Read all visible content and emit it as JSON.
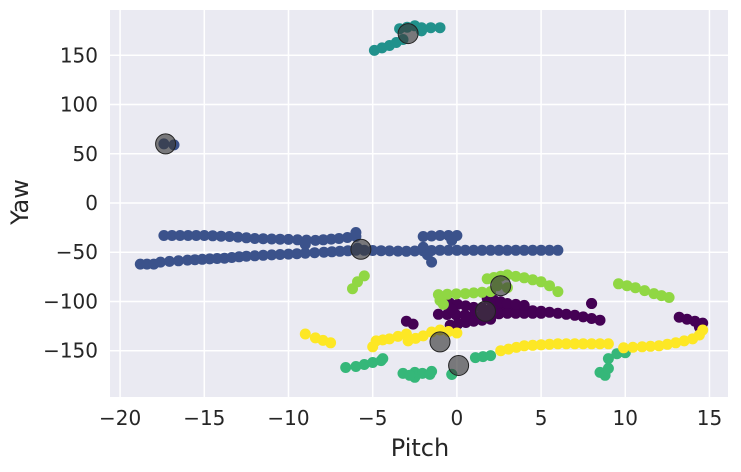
{
  "chart_data": {
    "type": "scatter",
    "title": "",
    "xlabel": "Pitch",
    "ylabel": "Yaw",
    "xlim": [
      -20.6,
      16.1
    ],
    "ylim": [
      -197,
      196
    ],
    "xticks": [
      -20,
      -15,
      -10,
      -5,
      0,
      5,
      10,
      15
    ],
    "yticks": [
      -150,
      -100,
      -50,
      0,
      50,
      100,
      150
    ],
    "xtick_labels": [
      "−20",
      "−15",
      "−10",
      "−5",
      "0",
      "5",
      "10",
      "15"
    ],
    "ytick_labels": [
      "−150",
      "−100",
      "−50",
      "0",
      "50",
      "100",
      "150"
    ],
    "grid": true,
    "legend": "none",
    "colors": {
      "background": "#eaeaf2",
      "grid": "#ffffff",
      "center": "#3a3a3a"
    },
    "series": [
      {
        "color": "#440154",
        "segments": [
          [
            [
              -0.9,
              -100
            ],
            [
              1.0,
              -106
            ],
            [
              3.0,
              -108
            ],
            [
              5.0,
              -110
            ],
            [
              7.0,
              -114
            ],
            [
              8.5,
              -119
            ]
          ],
          [
            [
              -1.1,
              -113
            ],
            [
              1.0,
              -114
            ],
            [
              3.0,
              -112
            ],
            [
              5.0,
              -112
            ]
          ],
          [
            [
              -0.4,
              -124
            ],
            [
              1.0,
              -120
            ],
            [
              2.0,
              -118
            ]
          ],
          [
            [
              1.8,
              -97
            ],
            [
              3.0,
              -102
            ],
            [
              4.0,
              -104
            ]
          ],
          [
            [
              8.0,
              -102
            ],
            [
              8.0,
              -102
            ]
          ],
          [
            [
              13.2,
              -116
            ],
            [
              14.6,
              -122
            ]
          ]
        ],
        "points": [
          [
            -3.0,
            -120
          ],
          [
            -2.6,
            -123
          ],
          [
            14.4,
            -126
          ],
          [
            -0.3,
            -108
          ],
          [
            0.5,
            -115
          ]
        ]
      },
      {
        "color": "#3b528b",
        "segments": [
          [
            [
              -18.8,
              -62
            ],
            [
              -18.0,
              -62
            ]
          ],
          [
            [
              -17.6,
              -60
            ],
            [
              -16.0,
              -58
            ],
            [
              -13.8,
              -56
            ],
            [
              -12.5,
              -54
            ],
            [
              -9.0,
              -51
            ],
            [
              -7.9,
              -50
            ],
            [
              -6.0,
              -48
            ]
          ],
          [
            [
              -17.4,
              -33
            ],
            [
              -15.0,
              -33
            ],
            [
              -13.5,
              -34
            ],
            [
              -12.0,
              -36
            ],
            [
              -10.0,
              -37
            ],
            [
              -8.4,
              -38
            ],
            [
              -7.0,
              -36
            ],
            [
              -6.0,
              -34
            ],
            [
              -6.0,
              -30
            ]
          ],
          [
            [
              -17.4,
              60
            ],
            [
              -16.8,
              59
            ]
          ],
          [
            [
              -5.5,
              -48
            ],
            [
              -3.0,
              -49
            ],
            [
              -1.0,
              -48
            ],
            [
              1.0,
              -48
            ],
            [
              3.0,
              -48
            ],
            [
              6.0,
              -48
            ]
          ],
          [
            [
              -2.0,
              -34
            ],
            [
              -1.0,
              -33
            ],
            [
              0.0,
              -33
            ]
          ],
          [
            [
              -2.0,
              -45
            ],
            [
              -1.5,
              -60
            ]
          ]
        ],
        "points": [
          [
            -9.0,
            -42
          ],
          [
            -5.9,
            -46
          ],
          [
            -0.3,
            -38
          ]
        ]
      },
      {
        "color": "#21918c",
        "segments": [
          [
            [
              -4.9,
              155
            ],
            [
              -4.0,
              160
            ],
            [
              -3.2,
              166
            ]
          ],
          [
            [
              -3.4,
              177
            ],
            [
              -2.5,
              180
            ]
          ],
          [
            [
              -2.1,
              178
            ],
            [
              -1.0,
              178
            ]
          ],
          [
            [
              -2.1,
              175
            ],
            [
              -2.1,
              175
            ]
          ]
        ],
        "points": []
      },
      {
        "color": "#35b779",
        "segments": [
          [
            [
              -6.6,
              -167
            ],
            [
              -6.0,
              -166
            ],
            [
              -5.0,
              -162
            ],
            [
              -4.5,
              -160
            ],
            [
              -4.4,
              -158
            ]
          ],
          [
            [
              -3.2,
              -173
            ],
            [
              -2.5,
              -172
            ],
            [
              -1.6,
              -174
            ],
            [
              -1.5,
              -171
            ]
          ],
          [
            [
              -0.3,
              -174
            ],
            [
              -0.3,
              -174
            ]
          ],
          [
            [
              1.1,
              -157
            ],
            [
              2.0,
              -155
            ]
          ],
          [
            [
              8.5,
              -172
            ],
            [
              8.8,
              -175
            ]
          ],
          [
            [
              9.0,
              -168
            ],
            [
              9.0,
              -158
            ],
            [
              9.5,
              -153
            ],
            [
              10.0,
              -152
            ]
          ]
        ],
        "points": [
          [
            -2.5,
            -177
          ],
          [
            -2.8,
            -175
          ]
        ]
      },
      {
        "color": "#90d743",
        "segments": [
          [
            [
              -6.2,
              -87
            ],
            [
              -5.9,
              -80
            ],
            [
              -5.5,
              -74
            ]
          ],
          [
            [
              -1.1,
              -93
            ],
            [
              0.5,
              -92
            ],
            [
              2.0,
              -90
            ]
          ],
          [
            [
              1.8,
              -77
            ],
            [
              3.0,
              -73
            ],
            [
              4.0,
              -76
            ],
            [
              5.0,
              -80
            ],
            [
              5.5,
              -84
            ],
            [
              6.0,
              -90
            ]
          ],
          [
            [
              9.6,
              -82
            ],
            [
              10.6,
              -86
            ],
            [
              11.7,
              -92
            ],
            [
              12.6,
              -96
            ]
          ],
          [
            [
              2.4,
              -84
            ],
            [
              3.0,
              -86
            ]
          ]
        ],
        "points": [
          [
            -1.0,
            -99
          ],
          [
            -0.8,
            -103
          ]
        ]
      },
      {
        "color": "#fde725",
        "segments": [
          [
            [
              -9.0,
              -133
            ],
            [
              -8.4,
              -137
            ],
            [
              -7.5,
              -142
            ]
          ],
          [
            [
              -5.0,
              -146
            ],
            [
              -4.8,
              -140
            ],
            [
              -4.0,
              -138
            ],
            [
              -3.0,
              -133
            ]
          ],
          [
            [
              -2.9,
              -140
            ],
            [
              -2.0,
              -135
            ],
            [
              -1.5,
              -131
            ]
          ],
          [
            [
              2.6,
              -150
            ],
            [
              4.0,
              -145
            ],
            [
              6.0,
              -143
            ],
            [
              9.0,
              -143
            ]
          ],
          [
            [
              9.9,
              -147
            ],
            [
              11.0,
              -146
            ],
            [
              12.0,
              -145
            ],
            [
              13.0,
              -142
            ],
            [
              14.0,
              -138
            ],
            [
              14.4,
              -134
            ],
            [
              14.6,
              -129
            ]
          ],
          [
            [
              -1.0,
              -129
            ],
            [
              0.0,
              -132
            ]
          ]
        ],
        "points": []
      }
    ],
    "cluster_centers": [
      [
        -17.3,
        60
      ],
      [
        -2.9,
        172
      ],
      [
        -5.7,
        -47
      ],
      [
        1.7,
        -110
      ],
      [
        2.6,
        -84
      ],
      [
        -1.0,
        -141
      ],
      [
        0.1,
        -165
      ]
    ]
  }
}
